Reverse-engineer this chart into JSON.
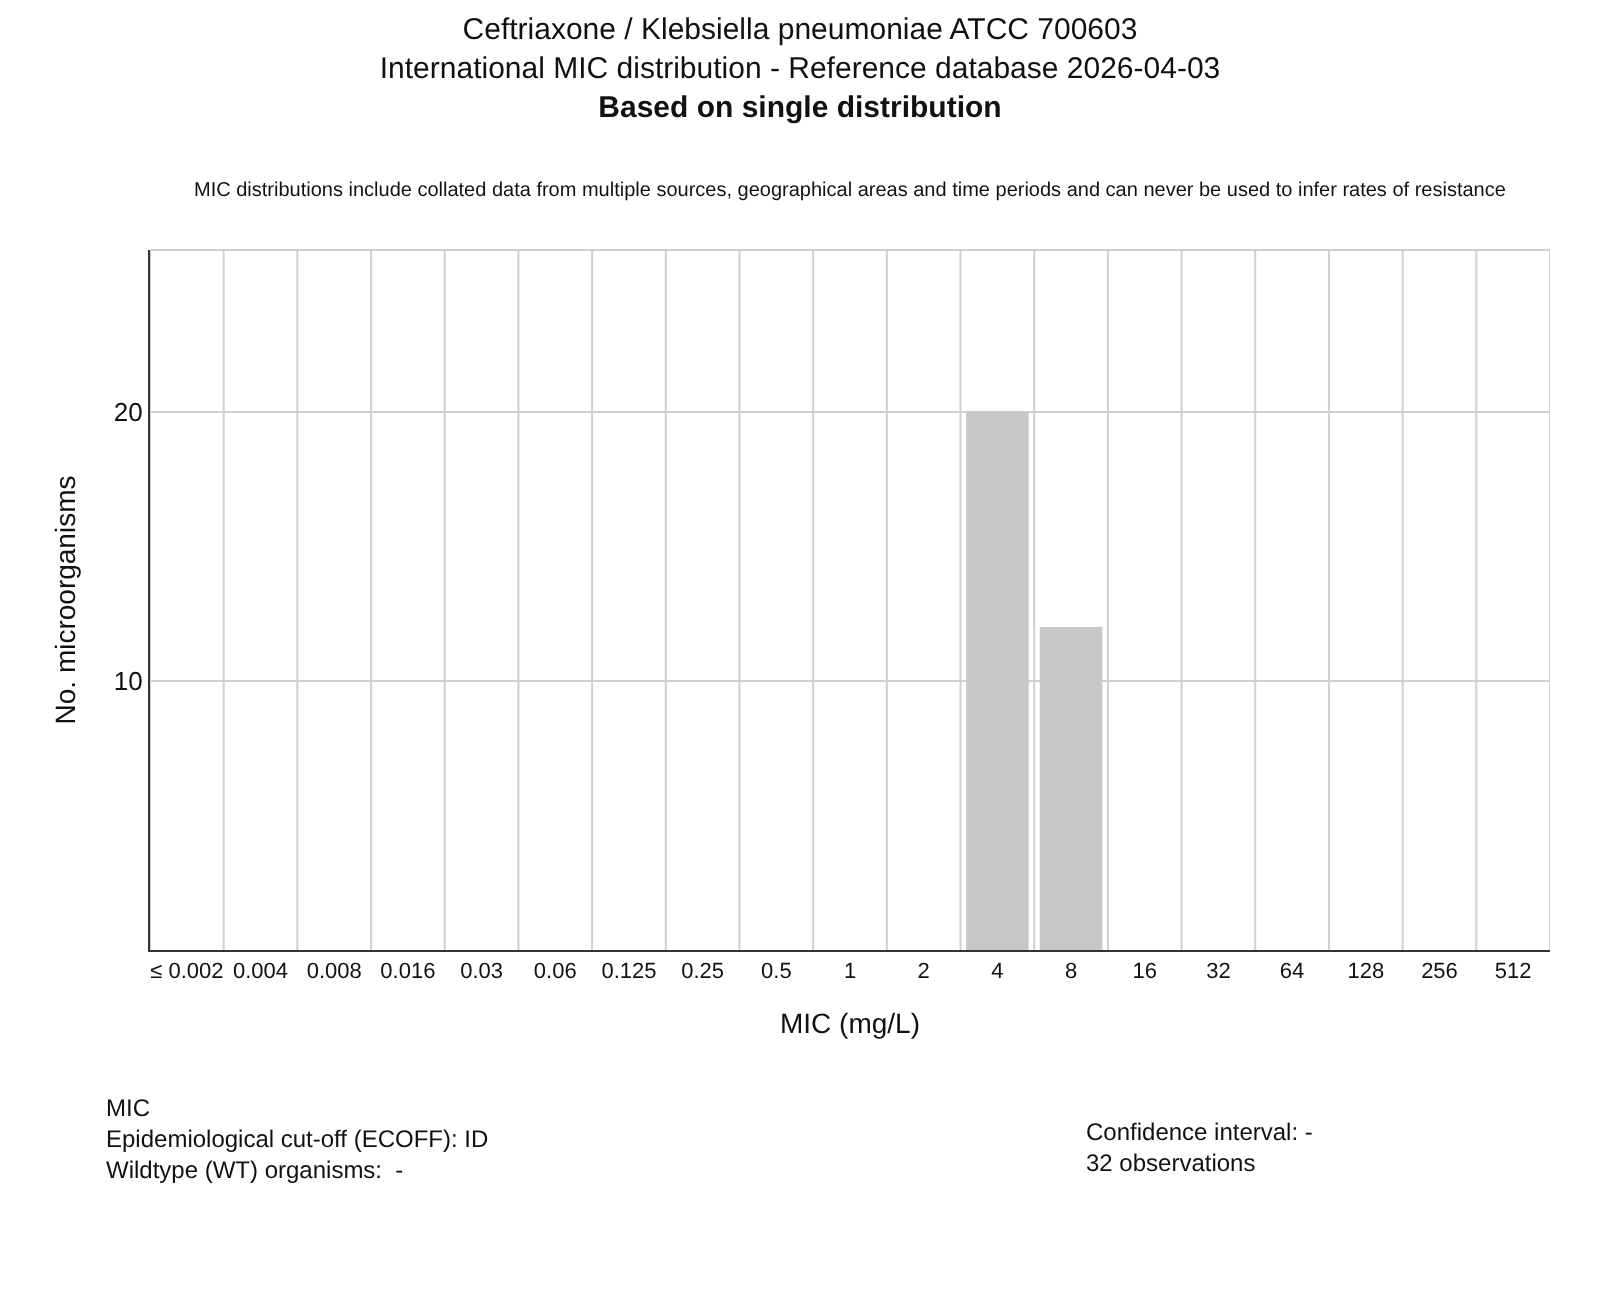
{
  "chart_data": {
    "type": "bar",
    "title": "Ceftriaxone / Klebsiella pneumoniae ATCC 700603\nInternational MIC distribution - Reference database 2026-04-03",
    "subtitle": "Based on single distribution",
    "xlabel": "MIC (mg/L)",
    "ylabel": "No. microorganisms",
    "categories": [
      "≤ 0.002",
      "0.004",
      "0.008",
      "0.016",
      "0.03",
      "0.06",
      "0.125",
      "0.25",
      "0.5",
      "1",
      "2",
      "4",
      "8",
      "16",
      "32",
      "64",
      "128",
      "256",
      "512"
    ],
    "series": [
      {
        "color": "#c8c8c8",
        "values": [
          0,
          0,
          0,
          0,
          0,
          0,
          0,
          0,
          0,
          0,
          0,
          20,
          12,
          0,
          0,
          0,
          0,
          0,
          0
        ]
      }
    ],
    "ylim": [
      0,
      26
    ],
    "yticks": [
      10,
      20
    ],
    "grid": true,
    "annotations": [
      "MIC distributions include collated data from multiple sources, geographical areas and time periods and can never be used to infer rates of resistance",
      "MIC\nEpidemiological cut-off (ECOFF): ID\nWildtype (WT) organisms:  -",
      "Confidence interval: -\n32 observations"
    ]
  }
}
